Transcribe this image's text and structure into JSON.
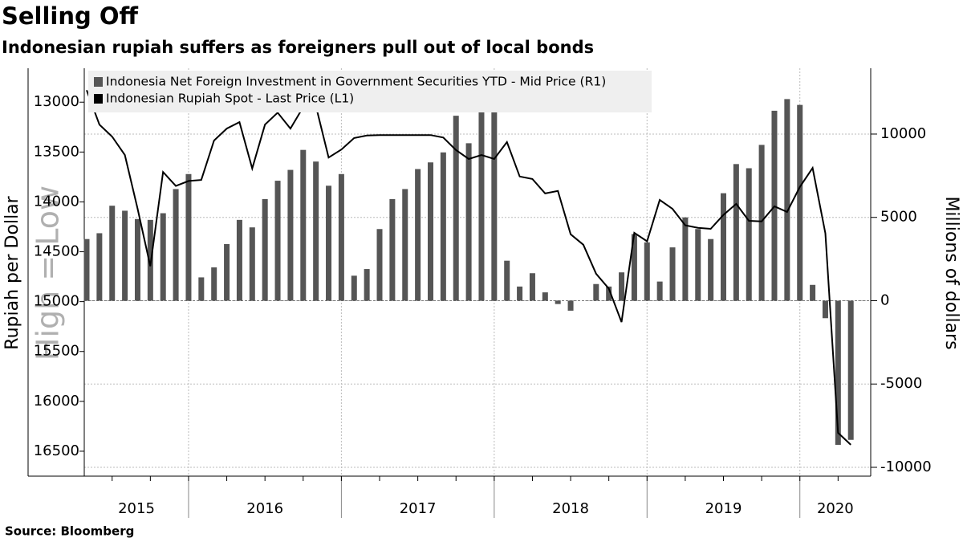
{
  "chart_data": {
    "type": "combo",
    "title": "Selling Off",
    "subtitle": "Indonesian rupiah suffers as foreigners pull out of local bonds",
    "source": "Source: Bloomberg",
    "annotation": "High = Low",
    "ylabel": "Rupiah per Dollar",
    "y2label": "Millions of dollars",
    "year_labels": [
      "2015",
      "2016",
      "2017",
      "2018",
      "2019",
      "2020"
    ],
    "ylim": [
      12660,
      16750
    ],
    "y_inverted": true,
    "yticks": [
      13000,
      13500,
      14000,
      14500,
      15000,
      15500,
      16000,
      16500
    ],
    "y2lim": [
      -10530,
      13950
    ],
    "y2ticks": [
      10000,
      5000,
      0,
      -5000,
      -10000
    ],
    "grid": true,
    "legend": "upper left",
    "series": [
      {
        "name": "Indonesia Net Foreign Investment in Government Securities YTD - Mid Price (R1)",
        "type": "bar",
        "axis": "y2",
        "color": "#555555",
        "values": [
          3700,
          4050,
          5700,
          5400,
          4900,
          4850,
          5250,
          6700,
          7600,
          1400,
          2000,
          3400,
          4850,
          4400,
          6100,
          7200,
          7850,
          9050,
          8350,
          6900,
          7600,
          1500,
          1900,
          4300,
          6100,
          6700,
          7900,
          8300,
          8900,
          11100,
          9450,
          12000,
          12000,
          2400,
          850,
          1650,
          500,
          -200,
          -600,
          0,
          1000,
          850,
          1700,
          4000,
          3500,
          1150,
          3200,
          5000,
          4300,
          3700,
          6450,
          8200,
          7950,
          9350,
          11400,
          12100,
          11750,
          950,
          -1050,
          -8650,
          -8350
        ]
      },
      {
        "name": "Indonesian Rupiah Spot - Last Price (L1)",
        "type": "line",
        "color": "#000000",
        "values": [
          12880,
          13225,
          13345,
          13530,
          14070,
          14645,
          13700,
          13840,
          13790,
          13780,
          13385,
          13265,
          13200,
          13665,
          13225,
          13105,
          13265,
          13050,
          13040,
          13555,
          13475,
          13360,
          13335,
          13330,
          13330,
          13330,
          13330,
          13330,
          13355,
          13480,
          13570,
          13530,
          13570,
          13400,
          13745,
          13770,
          13915,
          13890,
          14325,
          14430,
          14720,
          14870,
          15205,
          14310,
          14395,
          13980,
          14070,
          14235,
          14260,
          14270,
          14130,
          14020,
          14190,
          14195,
          14045,
          14100,
          13850,
          13660,
          14315,
          16315,
          16435
        ]
      }
    ]
  }
}
